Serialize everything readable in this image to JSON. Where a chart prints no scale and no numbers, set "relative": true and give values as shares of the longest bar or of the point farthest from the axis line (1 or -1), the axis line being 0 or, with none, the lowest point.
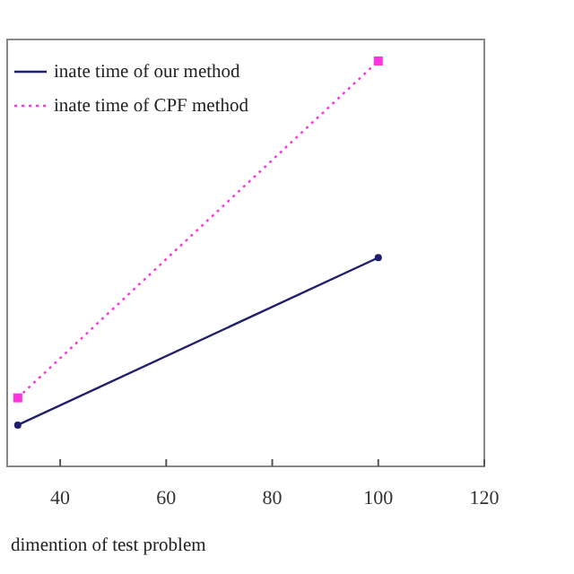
{
  "chart_data": {
    "type": "line",
    "relative": true,
    "xlabel": "dimention of test problem",
    "xlim": [
      30,
      120
    ],
    "xticks": [
      40,
      60,
      80,
      100,
      120
    ],
    "legend": "top left",
    "grid": false,
    "x": [
      32,
      100
    ],
    "series": [
      {
        "name": "inate time of our method",
        "color": "#1f1f6e",
        "values": [
          0.102,
          0.515
        ],
        "marker": "circle",
        "line_style": "solid"
      },
      {
        "name": "inate time of CPF method",
        "color": "#ff33dd",
        "values": [
          0.169,
          1
        ],
        "marker": "square",
        "line_style": "dotted"
      }
    ]
  }
}
